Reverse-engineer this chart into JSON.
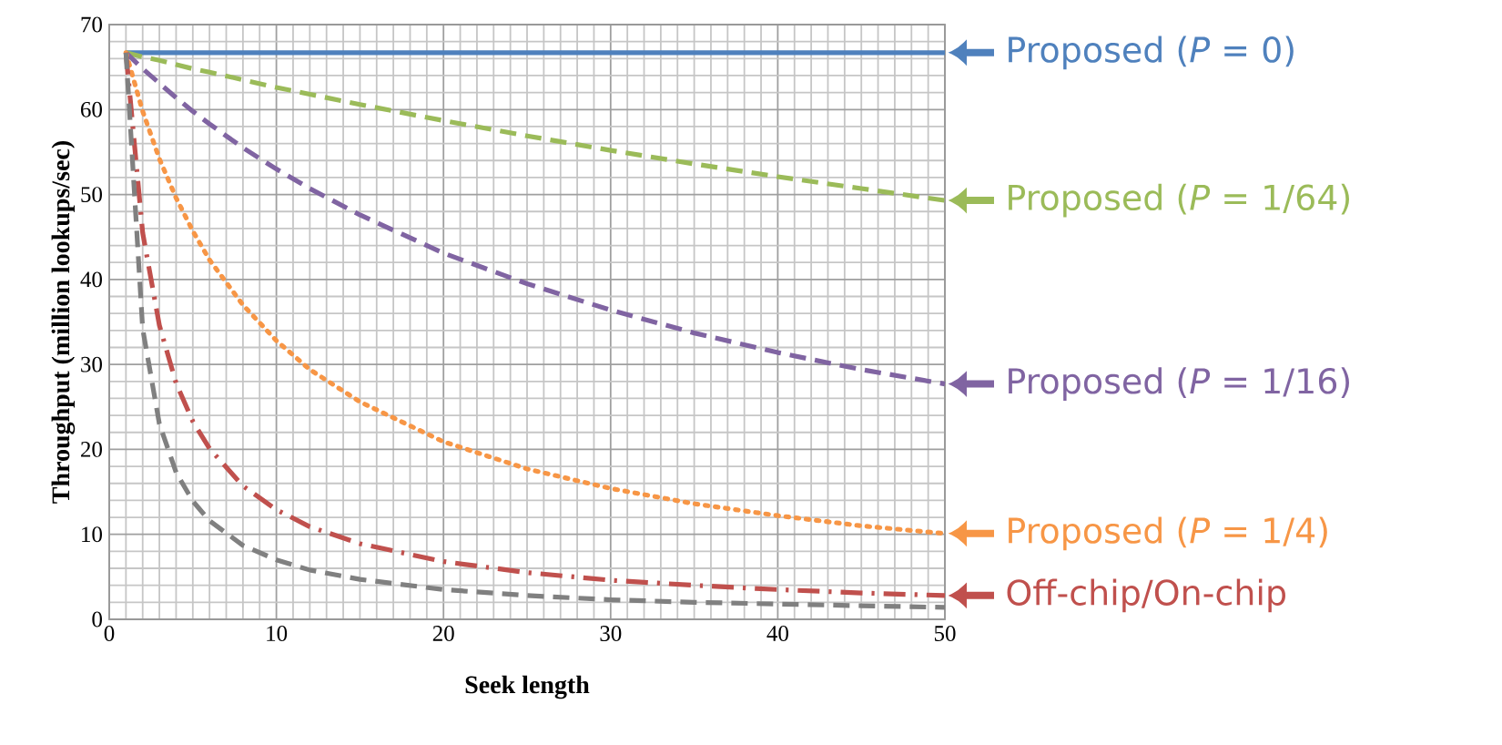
{
  "chart_data": {
    "type": "line",
    "xlabel": "Seek length",
    "ylabel": "Throughput (million lookups/sec)",
    "x": [
      1,
      2,
      3,
      4,
      5,
      6,
      8,
      10,
      12,
      15,
      20,
      25,
      30,
      35,
      40,
      45,
      50
    ],
    "series": [
      {
        "name": "Proposed (*P* = 0)",
        "color": "#4f81bd",
        "line_style": "solid",
        "values": [
          66.7,
          66.7,
          66.7,
          66.7,
          66.7,
          66.7,
          66.7,
          66.7,
          66.7,
          66.7,
          66.7,
          66.7,
          66.7,
          66.7,
          66.7,
          66.7,
          66.7
        ]
      },
      {
        "name": "Proposed (*P* = 1/64)",
        "color": "#9bbb59",
        "line_style": "dashed",
        "values": [
          66.7,
          66.2,
          65.8,
          65.3,
          64.8,
          64.4,
          63.5,
          62.6,
          61.8,
          60.6,
          58.7,
          56.9,
          55.2,
          53.6,
          52.1,
          50.7,
          49.3
        ]
      },
      {
        "name": "Proposed (*P* = 1/16)",
        "color": "#8064a2",
        "line_style": "dashed",
        "values": [
          66.7,
          64.8,
          63.1,
          61.4,
          59.8,
          58.3,
          55.5,
          53.0,
          50.7,
          47.6,
          43.1,
          39.5,
          36.4,
          33.7,
          31.4,
          29.4,
          27.7
        ]
      },
      {
        "name": "Proposed (*P* = 1/4)",
        "color": "#f79646",
        "line_style": "dotted",
        "values": [
          66.7,
          59.8,
          54.2,
          49.6,
          45.7,
          42.3,
          37.0,
          32.8,
          29.4,
          25.6,
          20.9,
          17.7,
          15.4,
          13.6,
          12.2,
          11.0,
          10.1
        ]
      },
      {
        "name": "Off-chip/On-chip",
        "color": "#c0504d",
        "line_style": "dashdot",
        "values": [
          66.7,
          45.5,
          34.6,
          27.8,
          23.3,
          20.1,
          15.7,
          12.9,
          10.9,
          8.9,
          6.8,
          5.5,
          4.6,
          4.0,
          3.5,
          3.1,
          2.8
        ]
      },
      {
        "color": "#808080",
        "line_style": "dashed",
        "values": [
          66.7,
          34.2,
          23.0,
          17.3,
          13.9,
          11.6,
          8.7,
          7.0,
          5.8,
          4.7,
          3.5,
          2.8,
          2.3,
          2.0,
          1.8,
          1.6,
          1.4
        ]
      }
    ],
    "xlim": [
      0,
      50
    ],
    "ylim": [
      0,
      70
    ],
    "xticks": [
      0,
      10,
      20,
      30,
      40,
      50
    ],
    "yticks": [
      0,
      10,
      20,
      30,
      40,
      50,
      60,
      70
    ],
    "grid": true,
    "legend": "right",
    "marker": "none"
  }
}
